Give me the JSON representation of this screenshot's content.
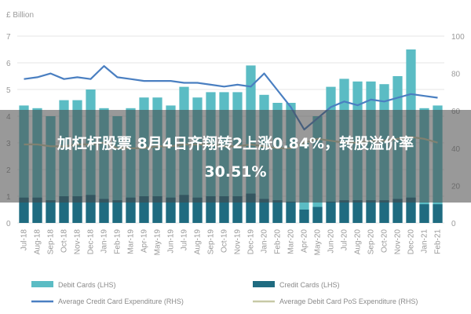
{
  "chart_data": {
    "type": "bar",
    "unit_label": "£ Billion",
    "categories": [
      "Jul-18",
      "Aug-18",
      "Sep-18",
      "Oct-18",
      "Nov-18",
      "Dec-18",
      "Jan-19",
      "Feb-19",
      "Mar-19",
      "Apr-19",
      "May-19",
      "Jun-19",
      "Jul-19",
      "Aug-19",
      "Sep-19",
      "Oct-19",
      "Nov-19",
      "Dec-19",
      "Jan-20",
      "Feb-20",
      "Mar-20",
      "Apr-20",
      "May-20",
      "Jun-20",
      "Jul-20",
      "Aug-20",
      "Sep-20",
      "Oct-20",
      "Nov-20",
      "Dec-20",
      "Jan-21",
      "Feb-21"
    ],
    "y_left_ticks": [
      "0",
      "1",
      "2",
      "3",
      "4",
      "5",
      "6",
      "7"
    ],
    "y_right_ticks": [
      "0",
      "20",
      "40",
      "60",
      "80",
      "100"
    ],
    "ylim_left": [
      0,
      7
    ],
    "ylim_right": [
      0,
      100
    ],
    "series": [
      {
        "name": "Debit Cards (LHS)",
        "type": "bar",
        "axis": "left",
        "color": "#5bbcc4",
        "values": [
          4.4,
          4.3,
          4.0,
          4.6,
          4.6,
          5.0,
          4.3,
          4.0,
          4.3,
          4.7,
          4.7,
          4.4,
          5.1,
          4.7,
          4.9,
          4.9,
          4.9,
          5.9,
          4.8,
          4.5,
          4.5,
          3.0,
          4.0,
          5.1,
          5.4,
          5.3,
          5.3,
          5.2,
          5.5,
          6.5,
          4.3,
          4.4
        ]
      },
      {
        "name": "Credit Cards (LHS)",
        "type": "bar",
        "axis": "left",
        "color": "#1f6b80",
        "values": [
          0.95,
          0.95,
          0.85,
          1.0,
          1.0,
          1.05,
          0.9,
          0.85,
          0.95,
          1.0,
          1.0,
          0.95,
          1.05,
          0.95,
          1.0,
          1.0,
          1.0,
          1.1,
          0.9,
          0.85,
          0.8,
          0.5,
          0.6,
          0.8,
          0.85,
          0.85,
          0.85,
          0.85,
          0.9,
          0.95,
          0.7,
          0.7
        ]
      },
      {
        "name": "Average Credit Card Expenditure (RHS)",
        "type": "line",
        "axis": "right",
        "color": "#4a7fc1",
        "values": [
          77,
          78,
          80,
          77,
          78,
          77,
          84,
          78,
          77,
          76,
          76,
          76,
          75,
          75,
          74,
          73,
          74,
          73,
          80,
          71,
          62,
          50,
          56,
          62,
          65,
          63,
          66,
          65,
          67,
          69,
          68,
          67
        ]
      },
      {
        "name": "Average Debit Card PoS Expenditure (RHS)",
        "type": "line",
        "axis": "right",
        "color": "#c7c9a6",
        "values": [
          42,
          42,
          41,
          41,
          42,
          42,
          43,
          40,
          40,
          40,
          41,
          41,
          42,
          42,
          42,
          41,
          41,
          42,
          41,
          40,
          40,
          43,
          45,
          44,
          43,
          43,
          44,
          44,
          45,
          46,
          45,
          43
        ]
      }
    ]
  },
  "overlay": {
    "headline": "加杠杆股票 8月4日齐翔转2上涨0.84%，转股溢价率\n30.51%"
  }
}
